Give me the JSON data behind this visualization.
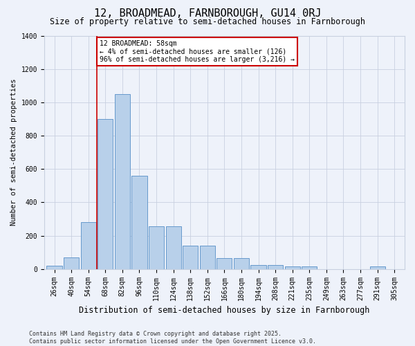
{
  "title": "12, BROADMEAD, FARNBOROUGH, GU14 0RJ",
  "subtitle": "Size of property relative to semi-detached houses in Farnborough",
  "xlabel": "Distribution of semi-detached houses by size in Farnborough",
  "ylabel": "Number of semi-detached properties",
  "categories": [
    "26sqm",
    "40sqm",
    "54sqm",
    "68sqm",
    "82sqm",
    "96sqm",
    "110sqm",
    "124sqm",
    "138sqm",
    "152sqm",
    "166sqm",
    "180sqm",
    "194sqm",
    "208sqm",
    "221sqm",
    "235sqm",
    "249sqm",
    "263sqm",
    "277sqm",
    "291sqm",
    "305sqm"
  ],
  "values": [
    20,
    70,
    280,
    900,
    1050,
    560,
    255,
    255,
    140,
    140,
    65,
    65,
    25,
    25,
    15,
    15,
    0,
    0,
    0,
    15,
    0
  ],
  "bar_color": "#b8d0ea",
  "bar_edge_color": "#6699cc",
  "background_color": "#eef2fa",
  "grid_color": "#c8d0e0",
  "vline_color": "#cc0000",
  "vline_x_index": 2.5,
  "annotation_title": "12 BROADMEAD: 58sqm",
  "annotation_line1": "← 4% of semi-detached houses are smaller (126)",
  "annotation_line2": "96% of semi-detached houses are larger (3,216) →",
  "annotation_box_color": "white",
  "annotation_box_edge": "#cc0000",
  "footer1": "Contains HM Land Registry data © Crown copyright and database right 2025.",
  "footer2": "Contains public sector information licensed under the Open Government Licence v3.0.",
  "ylim": [
    0,
    1400
  ],
  "yticks": [
    0,
    200,
    400,
    600,
    800,
    1000,
    1200,
    1400
  ],
  "title_fontsize": 11,
  "subtitle_fontsize": 8.5,
  "xlabel_fontsize": 8.5,
  "ylabel_fontsize": 7.5,
  "tick_fontsize": 7,
  "annotation_fontsize": 7,
  "footer_fontsize": 6
}
